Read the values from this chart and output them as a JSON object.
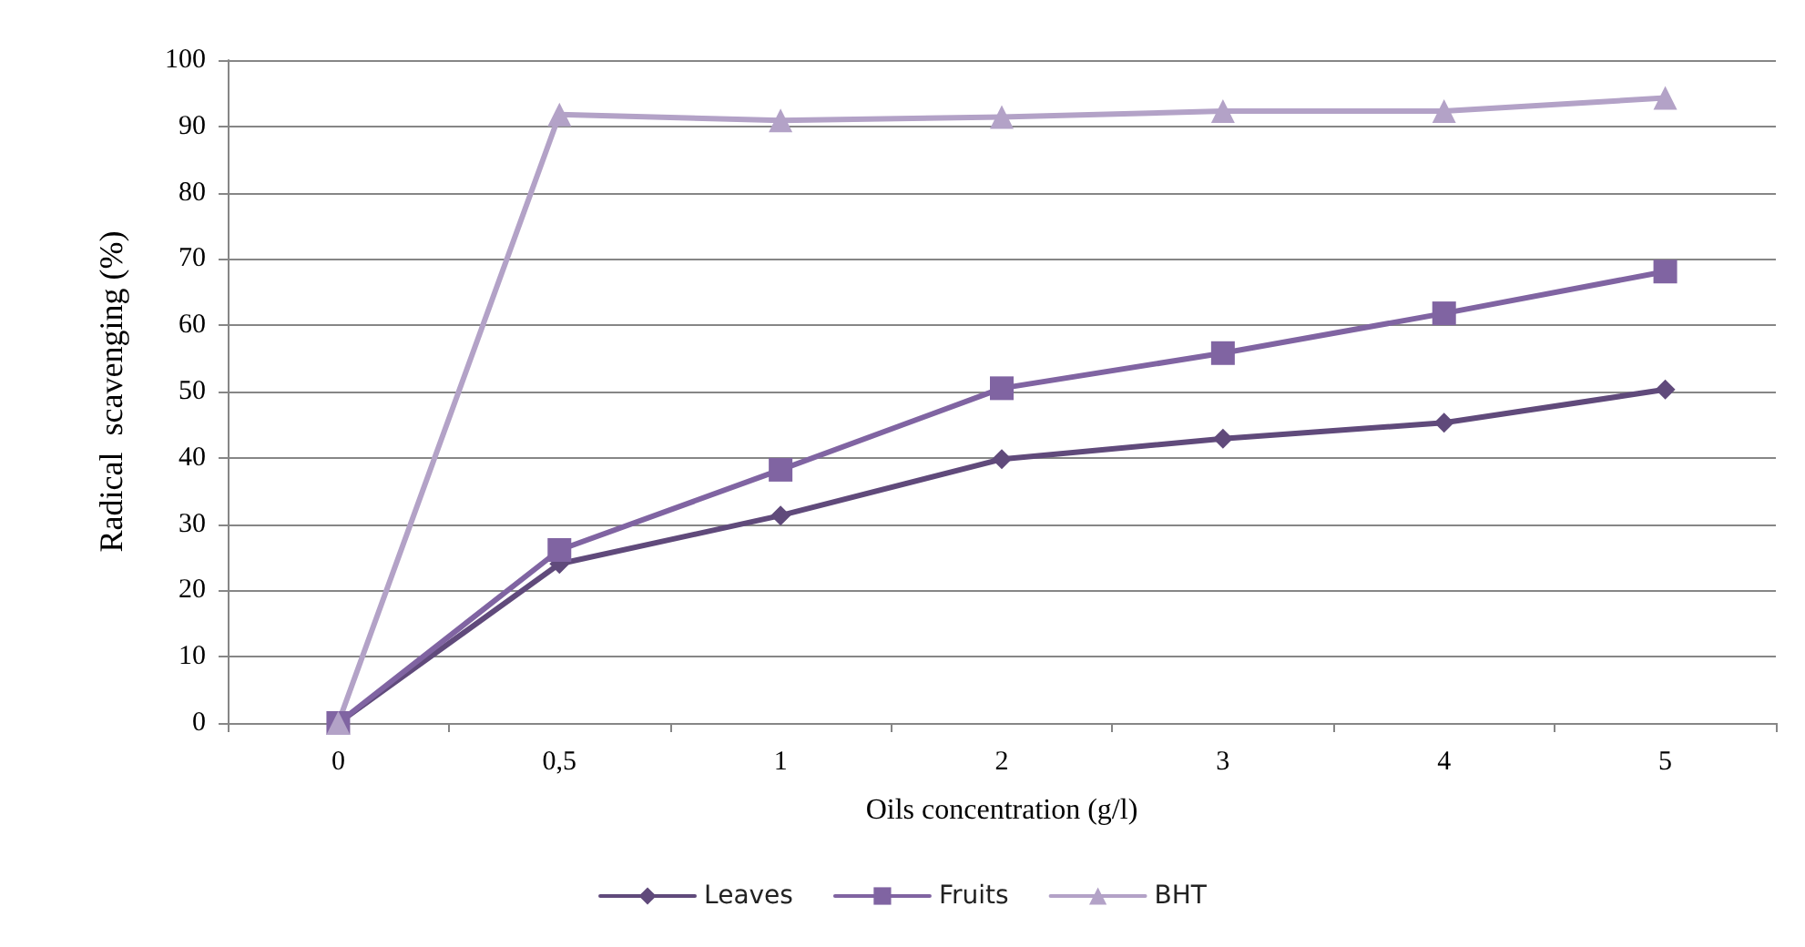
{
  "chart_data": {
    "type": "line",
    "xlabel": "Oils concentration (g/l)",
    "ylabel": "Radical  scavenging (%)",
    "categories": [
      "0",
      "0,5",
      "1",
      "2",
      "3",
      "4",
      "5"
    ],
    "series": [
      {
        "name": "Leaves",
        "color": "#604a7b",
        "marker": "diamond",
        "values": [
          0,
          24,
          31.3,
          39.8,
          42.9,
          45.3,
          50.3
        ]
      },
      {
        "name": "Fruits",
        "color": "#8064a2",
        "marker": "square",
        "values": [
          0,
          26.1,
          38.2,
          50.5,
          55.8,
          61.8,
          68.1
        ]
      },
      {
        "name": "BHT",
        "color": "#b3a2c7",
        "marker": "triangle",
        "values": [
          0,
          91.8,
          90.9,
          91.4,
          92.3,
          92.3,
          94.3
        ]
      }
    ],
    "ylim": [
      0,
      100
    ],
    "yticks": [
      0,
      10,
      20,
      30,
      40,
      50,
      60,
      70,
      80,
      90,
      100
    ],
    "grid": "y",
    "legend": "bottom",
    "line_style": "solid"
  }
}
